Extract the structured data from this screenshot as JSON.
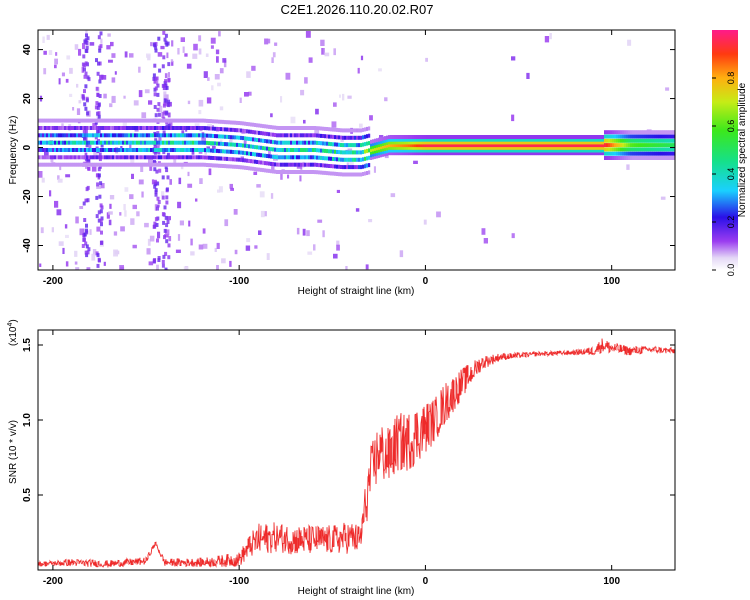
{
  "title": "C2E1.2026.110.20.02.R07",
  "chart_data": [
    {
      "type": "heatmap",
      "xlabel": "Height of straight line (km)",
      "ylabel": "Frequency (Hz)",
      "xlim": [
        -208,
        134
      ],
      "ylim": [
        -50,
        48
      ],
      "x_ticks": [
        -200,
        -100,
        0,
        100
      ],
      "x_tick_labels": [
        "-200",
        "-100",
        "0",
        "100"
      ],
      "y_ticks": [
        -40,
        -20,
        0,
        20,
        40
      ],
      "y_tick_labels": [
        "-40",
        "-20",
        "0",
        "20",
        "40"
      ],
      "colorbar": {
        "label": "Normalized spectral amplitude",
        "range": [
          0,
          1
        ],
        "ticks": [
          0.0,
          0.2,
          0.4,
          0.6,
          0.8
        ],
        "tick_labels": [
          "0.0",
          "0.2",
          "0.4",
          "0.6",
          "0.8"
        ]
      },
      "ridge": {
        "x": [
          -208,
          -180,
          -150,
          -120,
          -100,
          -80,
          -60,
          -45,
          -35,
          -30,
          -20,
          -10,
          0,
          20,
          50,
          80,
          95,
          110,
          134
        ],
        "freq": [
          2,
          2,
          2,
          2,
          1,
          -1,
          -1,
          -2,
          -2,
          -1,
          1,
          1,
          1,
          1,
          1,
          1,
          1,
          1,
          1
        ],
        "amplitude": [
          0.35,
          0.4,
          0.45,
          0.45,
          0.42,
          0.42,
          0.45,
          0.5,
          0.55,
          0.7,
          0.8,
          0.85,
          0.95,
          0.95,
          0.95,
          0.95,
          0.95,
          0.6,
          0.5
        ]
      },
      "grid": false
    },
    {
      "type": "line",
      "xlabel": "Height of straight line (km)",
      "ylabel": "SNR (10 * v/v)",
      "yscale_label": "(x10",
      "yscale_exp": "4",
      "xlim": [
        -208,
        134
      ],
      "ylim": [
        0,
        1.6
      ],
      "x_ticks": [
        -200,
        -100,
        0,
        100
      ],
      "x_tick_labels": [
        "-200",
        "-100",
        "0",
        "100"
      ],
      "y_ticks": [
        0.5,
        1.0,
        1.5
      ],
      "y_tick_labels": [
        "0.5",
        "1.0",
        "1.5"
      ],
      "color": "#ee2a2a",
      "grid": false,
      "series": [
        {
          "x": [
            -208,
            -190,
            -170,
            -150,
            -145,
            -140,
            -120,
            -100,
            -95,
            -90,
            -80,
            -70,
            -60,
            -50,
            -40,
            -35,
            -30,
            -25,
            -20,
            -15,
            -10,
            -5,
            0,
            5,
            10,
            20,
            30,
            40,
            60,
            80,
            90,
            95,
            100,
            110,
            120,
            134
          ],
          "y": [
            0.04,
            0.05,
            0.04,
            0.06,
            0.18,
            0.05,
            0.05,
            0.07,
            0.15,
            0.2,
            0.22,
            0.2,
            0.2,
            0.2,
            0.22,
            0.2,
            0.6,
            0.8,
            0.75,
            0.85,
            0.85,
            0.9,
            0.95,
            1.0,
            1.1,
            1.25,
            1.38,
            1.42,
            1.44,
            1.45,
            1.46,
            1.5,
            1.48,
            1.46,
            1.47,
            1.46
          ],
          "band": [
            0.03,
            0.05,
            0.05,
            0.05,
            0.03,
            0.05,
            0.06,
            0.1,
            0.15,
            0.22,
            0.2,
            0.2,
            0.2,
            0.2,
            0.22,
            0.2,
            0.4,
            0.4,
            0.4,
            0.4,
            0.4,
            0.4,
            0.35,
            0.3,
            0.3,
            0.2,
            0.1,
            0.05,
            0.03,
            0.03,
            0.06,
            0.1,
            0.08,
            0.06,
            0.05,
            0.04
          ]
        }
      ]
    }
  ]
}
